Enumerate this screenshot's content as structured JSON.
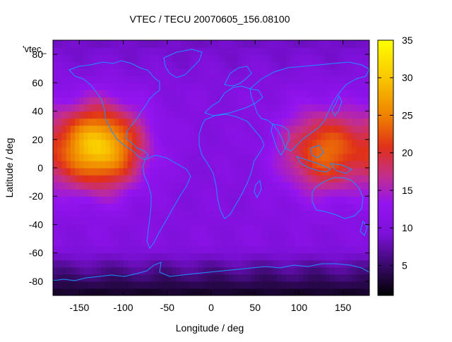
{
  "chart_data": {
    "type": "heatmap",
    "title": "VTEC / TECU 20070605_156.08100",
    "xlabel": "Longitude / deg",
    "ylabel": "Latitude / deg",
    "legend_label": "'vtec_",
    "xlim": [
      -180,
      180
    ],
    "ylim": [
      -90,
      90
    ],
    "x_ticks": [
      -150,
      -100,
      -50,
      0,
      50,
      100,
      150
    ],
    "y_ticks": [
      -80,
      -60,
      -40,
      -20,
      0,
      20,
      40,
      60,
      80
    ],
    "colorbar": {
      "range": [
        1,
        35
      ],
      "ticks": [
        5,
        10,
        15,
        20,
        25,
        30,
        35
      ],
      "palette": [
        "#000000",
        "#3a0a6c",
        "#7c10d8",
        "#9414f0",
        "#c42f8a",
        "#e0301a",
        "#ee7f00",
        "#f9c600",
        "#ffff00"
      ]
    },
    "features": [
      {
        "name": "enhancement-east-pacific",
        "lon": -128,
        "lat": 15,
        "value": 30
      },
      {
        "name": "enhancement-asia-pacific",
        "lon": 130,
        "lat": 12,
        "value": 23
      },
      {
        "name": "southern-polar-minimum",
        "lon": 80,
        "lat": -85,
        "value": 2
      }
    ],
    "coastline_color": "#1e90ff"
  }
}
